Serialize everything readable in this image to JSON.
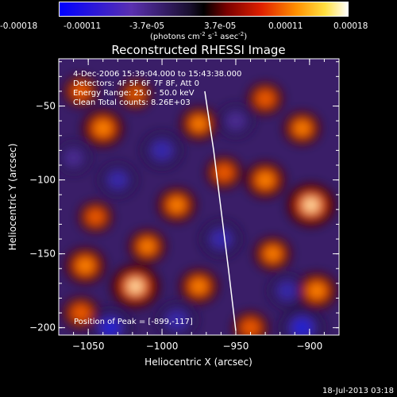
{
  "colorbar": {
    "tick_labels": [
      "-0.00018",
      "-0.00011",
      "-3.7e-05",
      "3.7e-05",
      "0.00011",
      "0.00018"
    ],
    "units_main": "(photons cm",
    "units_sup1": "-2",
    "units_mid": " s",
    "units_sup2": "-1",
    "units_mid2": " asec",
    "units_sup3": "-2",
    "units_end": ")"
  },
  "chart_data": {
    "type": "heatmap",
    "title": "Reconstructed RHESSI Image",
    "xlabel": "Heliocentric X (arcsec)",
    "ylabel": "Heliocentric Y (arcsec)",
    "xlim": [
      -1070,
      -880
    ],
    "ylim": [
      -205,
      -18
    ],
    "x_ticks": [
      -1050,
      -1000,
      -950,
      -900
    ],
    "y_ticks": [
      -50,
      -100,
      -150,
      -200
    ],
    "color_range": [
      -0.00018,
      0.00018
    ],
    "annotations": {
      "time": "4-Dec-2006 15:39:04.000 to 15:43:38.000",
      "detectors": "Detectors: 4F 5F 6F 7F 8F, Att 0",
      "energy": "Energy Range: 25.0 - 50.0 keV",
      "method": "Clean     Total counts: 8.26E+03",
      "peak": "Position of Peak = [-899,-117]"
    },
    "limb_curve": [
      [
        -971,
        -40
      ],
      [
        -965,
        -80
      ],
      [
        -960,
        -120
      ],
      [
        -955,
        -160
      ],
      [
        -950,
        -202
      ]
    ],
    "sources": [
      {
        "x": -1055,
        "y": -40,
        "v": 8e-05
      },
      {
        "x": -1040,
        "y": -65,
        "v": 0.00013
      },
      {
        "x": -1018,
        "y": -42,
        "v": 7e-05
      },
      {
        "x": -975,
        "y": -62,
        "v": 0.0001
      },
      {
        "x": -958,
        "y": -95,
        "v": 9e-05
      },
      {
        "x": -990,
        "y": -117,
        "v": 0.00011
      },
      {
        "x": -1045,
        "y": -125,
        "v": 8e-05
      },
      {
        "x": -1052,
        "y": -158,
        "v": 0.00012
      },
      {
        "x": -1010,
        "y": -145,
        "v": 0.0001
      },
      {
        "x": -1018,
        "y": -172,
        "v": 0.00018
      },
      {
        "x": -1055,
        "y": -190,
        "v": 9e-05
      },
      {
        "x": -975,
        "y": -172,
        "v": 0.00011
      },
      {
        "x": -930,
        "y": -100,
        "v": 0.00012
      },
      {
        "x": -899,
        "y": -117,
        "v": 0.00018
      },
      {
        "x": -905,
        "y": -65,
        "v": 0.0001
      },
      {
        "x": -930,
        "y": -45,
        "v": 9e-05
      },
      {
        "x": -925,
        "y": -150,
        "v": 0.0001
      },
      {
        "x": -895,
        "y": -175,
        "v": 0.00012
      },
      {
        "x": -940,
        "y": -200,
        "v": 9e-05
      },
      {
        "x": -1000,
        "y": -80,
        "v": -0.00012
      },
      {
        "x": -1030,
        "y": -100,
        "v": -0.0001
      },
      {
        "x": -960,
        "y": -140,
        "v": -0.00012
      },
      {
        "x": -1035,
        "y": -200,
        "v": -0.00014
      },
      {
        "x": -990,
        "y": -195,
        "v": -0.00012
      },
      {
        "x": -905,
        "y": -200,
        "v": -0.00015
      },
      {
        "x": -950,
        "y": -60,
        "v": -9e-05
      },
      {
        "x": -1060,
        "y": -85,
        "v": -8e-05
      },
      {
        "x": -915,
        "y": -175,
        "v": -0.0001
      }
    ]
  },
  "timestamp": "18-Jul-2013 03:18"
}
